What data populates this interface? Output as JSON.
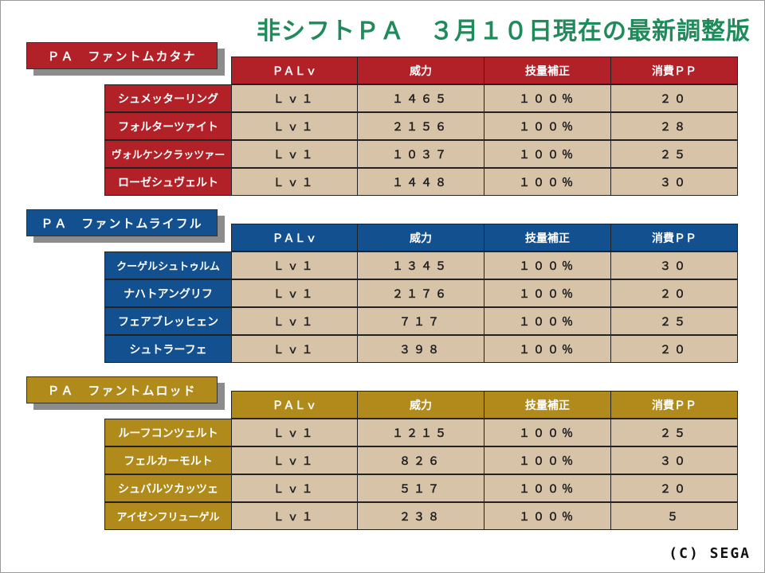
{
  "title": "非シフトＰＡ　３月１０日現在の最新調整版",
  "headers": [
    "ＰＡＬｖ",
    "威力",
    "技量補正",
    "消費ＰＰ"
  ],
  "colors": {
    "red": "#b32128",
    "blue": "#13508f",
    "gold": "#b08a1b",
    "cell": "#d7c4a8"
  },
  "sections": [
    {
      "label": "ＰＡ　ファントムカタナ",
      "rows": [
        {
          "name": "シュメッターリング",
          "lv": "Ｌｖ１",
          "power": "１４６５",
          "skill": "１００％",
          "pp": "２０"
        },
        {
          "name": "フォルターツァイト",
          "lv": "Ｌｖ１",
          "power": "２１５６",
          "skill": "１００％",
          "pp": "２８"
        },
        {
          "name": "ヴォルケンクラッツァー",
          "lv": "Ｌｖ１",
          "power": "１０３７",
          "skill": "１００％",
          "pp": "２５"
        },
        {
          "name": "ローゼシュヴェルト",
          "lv": "Ｌｖ１",
          "power": "１４４８",
          "skill": "１００％",
          "pp": "３０"
        }
      ]
    },
    {
      "label": "ＰＡ　ファントムライフル",
      "rows": [
        {
          "name": "クーゲルシュトゥルム",
          "lv": "Ｌｖ１",
          "power": "１３４５",
          "skill": "１００％",
          "pp": "３０"
        },
        {
          "name": "ナハトアングリフ",
          "lv": "Ｌｖ１",
          "power": "２１７６",
          "skill": "１００％",
          "pp": "２０"
        },
        {
          "name": "フェアブレッヒェン",
          "lv": "Ｌｖ１",
          "power": "７１７",
          "skill": "１００％",
          "pp": "２５"
        },
        {
          "name": "シュトラーフェ",
          "lv": "Ｌｖ１",
          "power": "３９８",
          "skill": "１００％",
          "pp": "２０"
        }
      ]
    },
    {
      "label": "ＰＡ　ファントムロッド",
      "rows": [
        {
          "name": "ルーフコンツェルト",
          "lv": "Ｌｖ１",
          "power": "１２１５",
          "skill": "１００％",
          "pp": "２５"
        },
        {
          "name": "フェルカーモルト",
          "lv": "Ｌｖ１",
          "power": "８２６",
          "skill": "１００％",
          "pp": "３０"
        },
        {
          "name": "シュバルツカッツェ",
          "lv": "Ｌｖ１",
          "power": "５１７",
          "skill": "１００％",
          "pp": "２０"
        },
        {
          "name": "アイゼンフリューゲル",
          "lv": "Ｌｖ１",
          "power": "２３８",
          "skill": "１００％",
          "pp": "５"
        }
      ]
    }
  ],
  "copyright": "(C) SEGA"
}
